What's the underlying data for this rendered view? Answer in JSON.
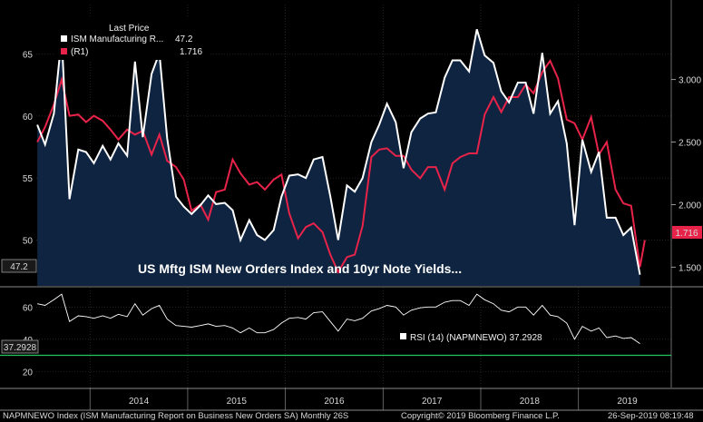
{
  "chart_data": [
    {
      "type": "area",
      "title": "US Mftg ISM New Orders Index and 10yr Note Yields...",
      "legend_header": "Last Price",
      "legend_position": "top-left",
      "grid": true,
      "x_range": [
        2013.45,
        2019.95
      ],
      "y_left_range": [
        46.3,
        69.0
      ],
      "y_right_range": [
        1.35,
        3.6
      ],
      "y_left_ticks": [
        "50",
        "55",
        "60",
        "65"
      ],
      "y_right_ticks": [
        "1.500",
        "2.000",
        "2.500",
        "3.000"
      ],
      "year_labels": [
        "2014",
        "2015",
        "2016",
        "2017",
        "2018",
        "2019"
      ],
      "series": [
        {
          "name": "ISM Manufacturing R...",
          "last_value": "47.2",
          "axis": "left",
          "color": "#ffffff",
          "fill": "#0e2440",
          "x": [
            2013.46,
            2013.54,
            2013.63,
            2013.71,
            2013.79,
            2013.88,
            2013.96,
            2014.04,
            2014.13,
            2014.21,
            2014.29,
            2014.38,
            2014.46,
            2014.54,
            2014.63,
            2014.71,
            2014.79,
            2014.88,
            2014.96,
            2015.04,
            2015.13,
            2015.21,
            2015.29,
            2015.38,
            2015.46,
            2015.54,
            2015.63,
            2015.71,
            2015.79,
            2015.88,
            2015.96,
            2016.04,
            2016.13,
            2016.21,
            2016.29,
            2016.38,
            2016.46,
            2016.54,
            2016.63,
            2016.71,
            2016.79,
            2016.88,
            2016.96,
            2017.04,
            2017.13,
            2017.21,
            2017.29,
            2017.38,
            2017.46,
            2017.54,
            2017.63,
            2017.71,
            2017.79,
            2017.88,
            2017.96,
            2018.04,
            2018.13,
            2018.21,
            2018.29,
            2018.38,
            2018.46,
            2018.54,
            2018.63,
            2018.71,
            2018.79,
            2018.88,
            2018.96,
            2019.04,
            2019.13,
            2019.21,
            2019.29,
            2019.38,
            2019.46,
            2019.54,
            2019.63
          ],
          "values": [
            59.3,
            57.7,
            60.2,
            66.4,
            53.3,
            57.3,
            57.1,
            56.2,
            57.6,
            56.5,
            57.8,
            56.8,
            64.4,
            58.3,
            63.4,
            65.1,
            58.2,
            53.5,
            52.7,
            52.1,
            52.8,
            53.6,
            52.9,
            53.0,
            52.4,
            50.0,
            51.6,
            50.4,
            50.0,
            50.8,
            53.5,
            55.2,
            55.3,
            55.0,
            56.5,
            56.7,
            53.5,
            50.0,
            54.4,
            53.9,
            55.0,
            57.9,
            59.3,
            61.0,
            59.5,
            55.8,
            58.7,
            59.8,
            60.2,
            60.3,
            63.1,
            64.5,
            64.5,
            63.6,
            67.0,
            64.9,
            64.3,
            62.0,
            61.1,
            62.7,
            62.7,
            60.2,
            65.1,
            60.2,
            61.2,
            57.8,
            51.2,
            58.1,
            55.5,
            57.1,
            51.8,
            51.8,
            50.4,
            51.0,
            47.2
          ]
        },
        {
          "name": "(R1)",
          "last_value": "1.716",
          "axis": "right",
          "color": "#e8234a",
          "x": [
            2013.46,
            2013.54,
            2013.63,
            2013.71,
            2013.79,
            2013.88,
            2013.96,
            2014.04,
            2014.13,
            2014.21,
            2014.29,
            2014.38,
            2014.46,
            2014.54,
            2014.63,
            2014.71,
            2014.79,
            2014.88,
            2014.96,
            2015.04,
            2015.13,
            2015.21,
            2015.29,
            2015.38,
            2015.46,
            2015.54,
            2015.63,
            2015.71,
            2015.79,
            2015.88,
            2015.96,
            2016.04,
            2016.13,
            2016.21,
            2016.29,
            2016.38,
            2016.46,
            2016.54,
            2016.63,
            2016.71,
            2016.79,
            2016.88,
            2016.96,
            2017.04,
            2017.13,
            2017.21,
            2017.29,
            2017.38,
            2017.46,
            2017.54,
            2017.63,
            2017.71,
            2017.79,
            2017.88,
            2017.96,
            2018.04,
            2018.13,
            2018.21,
            2018.29,
            2018.38,
            2018.46,
            2018.54,
            2018.63,
            2018.71,
            2018.79,
            2018.88,
            2018.96,
            2019.04,
            2019.13,
            2019.21,
            2019.29,
            2019.38,
            2019.46,
            2019.54,
            2019.63,
            2019.68
          ],
          "values": [
            2.5,
            2.62,
            2.8,
            3.0,
            2.71,
            2.72,
            2.66,
            2.71,
            2.67,
            2.6,
            2.52,
            2.6,
            2.56,
            2.59,
            2.4,
            2.56,
            2.35,
            2.3,
            2.2,
            1.95,
            2.0,
            1.88,
            2.1,
            2.12,
            2.36,
            2.25,
            2.16,
            2.18,
            2.12,
            2.2,
            2.24,
            1.93,
            1.73,
            1.82,
            1.85,
            1.78,
            1.6,
            1.46,
            1.58,
            1.6,
            1.83,
            2.38,
            2.44,
            2.45,
            2.39,
            2.39,
            2.28,
            2.21,
            2.3,
            2.3,
            2.12,
            2.33,
            2.38,
            2.41,
            2.41,
            2.72,
            2.86,
            2.74,
            2.86,
            2.86,
            2.96,
            2.89,
            3.06,
            3.15,
            3.01,
            2.68,
            2.65,
            2.52,
            2.7,
            2.4,
            2.5,
            2.12,
            2.01,
            1.99,
            1.5,
            1.716
          ]
        }
      ]
    },
    {
      "type": "line",
      "legend": "RSI (14) (NAPMNEWO) 37.2928",
      "last_value": "37.2928",
      "y_range": [
        10,
        72
      ],
      "y_ticks": [
        "20",
        "40",
        "60"
      ],
      "reference_line": {
        "value": 30,
        "color": "#22c55e"
      },
      "series": [
        {
          "name": "RSI (14) (NAPMNEWO)",
          "color": "#ffffff",
          "x": [
            2013.46,
            2013.54,
            2013.63,
            2013.71,
            2013.79,
            2013.88,
            2013.96,
            2014.04,
            2014.13,
            2014.21,
            2014.29,
            2014.38,
            2014.46,
            2014.54,
            2014.63,
            2014.71,
            2014.79,
            2014.88,
            2014.96,
            2015.04,
            2015.13,
            2015.21,
            2015.29,
            2015.38,
            2015.46,
            2015.54,
            2015.63,
            2015.71,
            2015.79,
            2015.88,
            2015.96,
            2016.04,
            2016.13,
            2016.21,
            2016.29,
            2016.38,
            2016.46,
            2016.54,
            2016.63,
            2016.71,
            2016.79,
            2016.88,
            2016.96,
            2017.04,
            2017.13,
            2017.21,
            2017.29,
            2017.38,
            2017.46,
            2017.54,
            2017.63,
            2017.71,
            2017.79,
            2017.88,
            2017.96,
            2018.04,
            2018.13,
            2018.21,
            2018.29,
            2018.38,
            2018.46,
            2018.54,
            2018.63,
            2018.71,
            2018.79,
            2018.88,
            2018.96,
            2019.04,
            2019.13,
            2019.21,
            2019.29,
            2019.38,
            2019.46,
            2019.54,
            2019.63
          ],
          "values": [
            62.0,
            61.0,
            64.5,
            68.0,
            51.0,
            54.5,
            54.0,
            53.0,
            54.5,
            53.0,
            55.5,
            54.0,
            62.0,
            55.0,
            59.0,
            61.0,
            52.5,
            48.5,
            48.0,
            47.5,
            48.5,
            49.5,
            48.0,
            48.5,
            47.0,
            44.0,
            47.0,
            44.0,
            44.0,
            46.0,
            50.0,
            53.0,
            53.5,
            52.5,
            56.5,
            57.0,
            51.0,
            45.0,
            52.5,
            51.5,
            53.0,
            57.5,
            59.0,
            61.0,
            60.0,
            55.0,
            58.0,
            59.5,
            60.0,
            60.0,
            63.0,
            64.0,
            64.0,
            61.0,
            68.0,
            64.5,
            62.0,
            58.0,
            57.0,
            60.0,
            60.0,
            55.0,
            61.0,
            55.0,
            54.0,
            50.0,
            40.0,
            48.0,
            45.0,
            47.0,
            41.0,
            42.0,
            40.5,
            41.0,
            37.2928
          ]
        }
      ]
    }
  ],
  "footer": {
    "left": "NAPMNEWO Index (ISM Manufacturing Report on Business New Orders SA)  Monthly 26S",
    "center": "Copyright© 2019 Bloomberg Finance L.P.",
    "right": "26-Sep-2019 08:19:48"
  },
  "colors": {
    "background": "#000000",
    "area_fill": "#0e2440",
    "grid": "#3a3a3a",
    "ism": "#ffffff",
    "yield": "#e8234a",
    "rsi_ref": "#22c55e"
  }
}
